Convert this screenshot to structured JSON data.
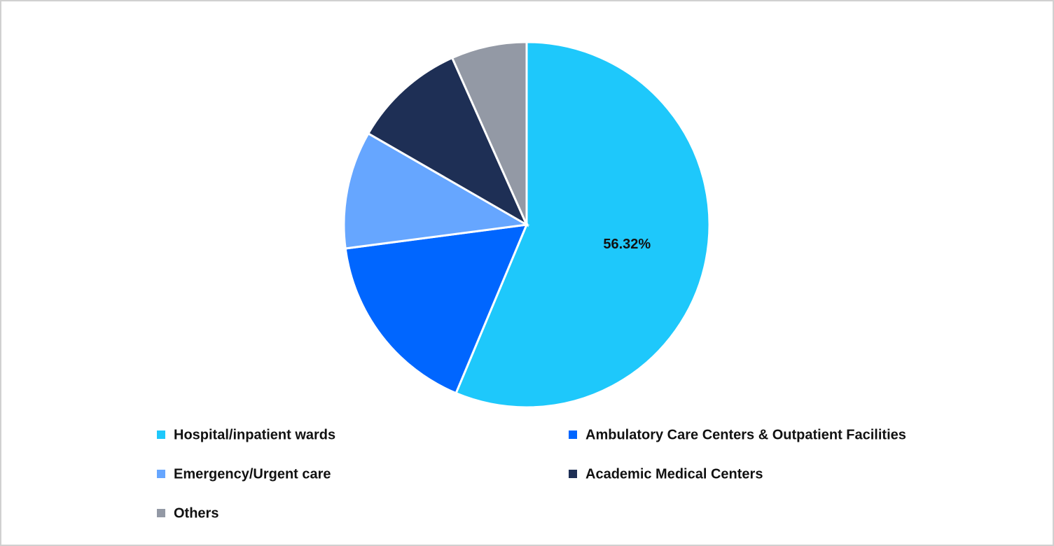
{
  "chart_data": {
    "type": "pie",
    "categories": [
      "Hospital/inpatient wards",
      "Ambulatory Care Centers & Outpatient Facilities",
      "Emergency/Urgent care",
      "Academic Medical Centers",
      "Others"
    ],
    "values": [
      56.32,
      16.6,
      10.4,
      10.0,
      6.68
    ],
    "value_labels": [
      "56.32%",
      null,
      null,
      null,
      null
    ],
    "colors": [
      "#1ec8fb",
      "#0066ff",
      "#66a6ff",
      "#1e2f55",
      "#9399a5"
    ],
    "legend": "bottom"
  }
}
